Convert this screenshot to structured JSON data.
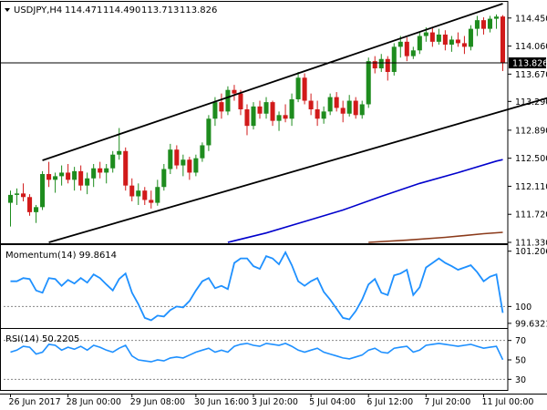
{
  "chart_data": [
    {
      "panel": "price",
      "type": "candlestick",
      "title": "USDJPY,H4",
      "ohlc_header": [
        "114.471",
        "114.490",
        "113.713",
        "113.826"
      ],
      "ylim": [
        111.33,
        114.65
      ],
      "y_ticks": [
        "114.450",
        "114.060",
        "113.670",
        "113.290",
        "112.890",
        "112.500",
        "112.110",
        "111.720",
        "111.330"
      ],
      "last_price_label": "113.826",
      "last_price": 113.826,
      "horizontal_line": 113.826,
      "channel_lines": [
        {
          "from": [
            5,
            112.47
          ],
          "to": [
            77,
            114.65
          ]
        },
        {
          "from": [
            6,
            111.33
          ],
          "to": [
            100,
            113.75
          ]
        }
      ],
      "candles": [
        {
          "i": 0,
          "o": 111.88,
          "h": 112.05,
          "l": 111.55,
          "c": 111.99
        },
        {
          "i": 1,
          "o": 111.99,
          "h": 112.08,
          "l": 111.85,
          "c": 112.01
        },
        {
          "i": 2,
          "o": 112.01,
          "h": 112.15,
          "l": 111.9,
          "c": 111.96
        },
        {
          "i": 3,
          "o": 111.96,
          "h": 112.0,
          "l": 111.7,
          "c": 111.75
        },
        {
          "i": 4,
          "o": 111.75,
          "h": 111.85,
          "l": 111.6,
          "c": 111.82
        },
        {
          "i": 5,
          "o": 111.82,
          "h": 112.32,
          "l": 111.78,
          "c": 112.28
        },
        {
          "i": 6,
          "o": 112.28,
          "h": 112.45,
          "l": 112.1,
          "c": 112.2
        },
        {
          "i": 7,
          "o": 112.2,
          "h": 112.3,
          "l": 112.02,
          "c": 112.25
        },
        {
          "i": 8,
          "o": 112.25,
          "h": 112.4,
          "l": 112.12,
          "c": 112.3
        },
        {
          "i": 9,
          "o": 112.3,
          "h": 112.42,
          "l": 112.15,
          "c": 112.2
        },
        {
          "i": 10,
          "o": 112.2,
          "h": 112.38,
          "l": 112.05,
          "c": 112.32
        },
        {
          "i": 11,
          "o": 112.32,
          "h": 112.4,
          "l": 112.05,
          "c": 112.12
        },
        {
          "i": 12,
          "o": 112.12,
          "h": 112.3,
          "l": 112.0,
          "c": 112.22
        },
        {
          "i": 13,
          "o": 112.22,
          "h": 112.42,
          "l": 112.1,
          "c": 112.36
        },
        {
          "i": 14,
          "o": 112.36,
          "h": 112.45,
          "l": 112.22,
          "c": 112.3
        },
        {
          "i": 15,
          "o": 112.3,
          "h": 112.42,
          "l": 112.15,
          "c": 112.36
        },
        {
          "i": 16,
          "o": 112.36,
          "h": 112.6,
          "l": 112.3,
          "c": 112.55
        },
        {
          "i": 17,
          "o": 112.55,
          "h": 112.92,
          "l": 112.48,
          "c": 112.6
        },
        {
          "i": 18,
          "o": 112.6,
          "h": 112.65,
          "l": 112.05,
          "c": 112.12
        },
        {
          "i": 19,
          "o": 112.12,
          "h": 112.22,
          "l": 111.9,
          "c": 111.97
        },
        {
          "i": 20,
          "o": 111.97,
          "h": 112.15,
          "l": 111.85,
          "c": 112.05
        },
        {
          "i": 21,
          "o": 112.05,
          "h": 112.1,
          "l": 111.85,
          "c": 111.92
        },
        {
          "i": 22,
          "o": 111.92,
          "h": 112.05,
          "l": 111.8,
          "c": 111.88
        },
        {
          "i": 23,
          "o": 111.88,
          "h": 112.2,
          "l": 111.84,
          "c": 112.1
        },
        {
          "i": 24,
          "o": 112.1,
          "h": 112.42,
          "l": 112.05,
          "c": 112.35
        },
        {
          "i": 25,
          "o": 112.35,
          "h": 112.7,
          "l": 112.28,
          "c": 112.62
        },
        {
          "i": 26,
          "o": 112.62,
          "h": 112.68,
          "l": 112.35,
          "c": 112.4
        },
        {
          "i": 27,
          "o": 112.4,
          "h": 112.55,
          "l": 112.25,
          "c": 112.48
        },
        {
          "i": 28,
          "o": 112.48,
          "h": 112.52,
          "l": 112.2,
          "c": 112.3
        },
        {
          "i": 29,
          "o": 112.3,
          "h": 112.55,
          "l": 112.25,
          "c": 112.5
        },
        {
          "i": 30,
          "o": 112.5,
          "h": 112.72,
          "l": 112.45,
          "c": 112.68
        },
        {
          "i": 31,
          "o": 112.68,
          "h": 113.1,
          "l": 112.6,
          "c": 113.05
        },
        {
          "i": 32,
          "o": 113.05,
          "h": 113.35,
          "l": 112.95,
          "c": 113.28
        },
        {
          "i": 33,
          "o": 113.28,
          "h": 113.4,
          "l": 113.05,
          "c": 113.15
        },
        {
          "i": 34,
          "o": 113.15,
          "h": 113.5,
          "l": 113.1,
          "c": 113.45
        },
        {
          "i": 35,
          "o": 113.45,
          "h": 113.52,
          "l": 113.3,
          "c": 113.4
        },
        {
          "i": 36,
          "o": 113.4,
          "h": 113.45,
          "l": 113.1,
          "c": 113.18
        },
        {
          "i": 37,
          "o": 113.18,
          "h": 113.25,
          "l": 112.82,
          "c": 112.95
        },
        {
          "i": 38,
          "o": 112.95,
          "h": 113.28,
          "l": 112.9,
          "c": 113.22
        },
        {
          "i": 39,
          "o": 113.22,
          "h": 113.3,
          "l": 113.05,
          "c": 113.12
        },
        {
          "i": 40,
          "o": 113.12,
          "h": 113.35,
          "l": 113.05,
          "c": 113.28
        },
        {
          "i": 41,
          "o": 113.28,
          "h": 113.3,
          "l": 112.95,
          "c": 113.02
        },
        {
          "i": 42,
          "o": 113.02,
          "h": 113.15,
          "l": 112.88,
          "c": 113.1
        },
        {
          "i": 43,
          "o": 113.1,
          "h": 113.25,
          "l": 113.0,
          "c": 113.05
        },
        {
          "i": 44,
          "o": 113.05,
          "h": 113.4,
          "l": 112.95,
          "c": 113.32
        },
        {
          "i": 45,
          "o": 113.32,
          "h": 113.7,
          "l": 113.28,
          "c": 113.62
        },
        {
          "i": 46,
          "o": 113.62,
          "h": 113.68,
          "l": 113.25,
          "c": 113.3
        },
        {
          "i": 47,
          "o": 113.3,
          "h": 113.4,
          "l": 113.1,
          "c": 113.18
        },
        {
          "i": 48,
          "o": 113.18,
          "h": 113.3,
          "l": 112.95,
          "c": 113.05
        },
        {
          "i": 49,
          "o": 113.05,
          "h": 113.22,
          "l": 112.98,
          "c": 113.15
        },
        {
          "i": 50,
          "o": 113.15,
          "h": 113.4,
          "l": 113.1,
          "c": 113.35
        },
        {
          "i": 51,
          "o": 113.35,
          "h": 113.42,
          "l": 113.15,
          "c": 113.2
        },
        {
          "i": 52,
          "o": 113.2,
          "h": 113.3,
          "l": 113.0,
          "c": 113.12
        },
        {
          "i": 53,
          "o": 113.12,
          "h": 113.38,
          "l": 113.08,
          "c": 113.3
        },
        {
          "i": 54,
          "o": 113.3,
          "h": 113.35,
          "l": 113.05,
          "c": 113.1
        },
        {
          "i": 55,
          "o": 113.1,
          "h": 113.3,
          "l": 113.05,
          "c": 113.25
        },
        {
          "i": 56,
          "o": 113.25,
          "h": 113.9,
          "l": 113.2,
          "c": 113.85
        },
        {
          "i": 57,
          "o": 113.85,
          "h": 113.92,
          "l": 113.68,
          "c": 113.75
        },
        {
          "i": 58,
          "o": 113.75,
          "h": 113.95,
          "l": 113.7,
          "c": 113.88
        },
        {
          "i": 59,
          "o": 113.88,
          "h": 113.92,
          "l": 113.58,
          "c": 113.7
        },
        {
          "i": 60,
          "o": 113.7,
          "h": 114.1,
          "l": 113.65,
          "c": 114.05
        },
        {
          "i": 61,
          "o": 114.05,
          "h": 114.2,
          "l": 113.9,
          "c": 114.12
        },
        {
          "i": 62,
          "o": 114.12,
          "h": 114.18,
          "l": 113.85,
          "c": 113.92
        },
        {
          "i": 63,
          "o": 113.92,
          "h": 114.05,
          "l": 113.88,
          "c": 114.0
        },
        {
          "i": 64,
          "o": 114.0,
          "h": 114.25,
          "l": 113.95,
          "c": 114.2
        },
        {
          "i": 65,
          "o": 114.2,
          "h": 114.32,
          "l": 114.12,
          "c": 114.25
        },
        {
          "i": 66,
          "o": 114.25,
          "h": 114.32,
          "l": 114.05,
          "c": 114.12
        },
        {
          "i": 67,
          "o": 114.12,
          "h": 114.3,
          "l": 114.08,
          "c": 114.22
        },
        {
          "i": 68,
          "o": 114.22,
          "h": 114.28,
          "l": 114.0,
          "c": 114.08
        },
        {
          "i": 69,
          "o": 114.08,
          "h": 114.2,
          "l": 113.98,
          "c": 114.15
        },
        {
          "i": 70,
          "o": 114.15,
          "h": 114.25,
          "l": 114.05,
          "c": 114.1
        },
        {
          "i": 71,
          "o": 114.1,
          "h": 114.2,
          "l": 113.95,
          "c": 114.05
        },
        {
          "i": 72,
          "o": 114.05,
          "h": 114.35,
          "l": 114.0,
          "c": 114.3
        },
        {
          "i": 73,
          "o": 114.3,
          "h": 114.48,
          "l": 114.2,
          "c": 114.42
        },
        {
          "i": 74,
          "o": 114.42,
          "h": 114.46,
          "l": 114.22,
          "c": 114.3
        },
        {
          "i": 75,
          "o": 114.3,
          "h": 114.48,
          "l": 114.25,
          "c": 114.44
        },
        {
          "i": 76,
          "o": 114.44,
          "h": 114.5,
          "l": 114.3,
          "c": 114.47
        },
        {
          "i": 77,
          "o": 114.471,
          "h": 114.49,
          "l": 113.713,
          "c": 113.826
        }
      ],
      "moving_averages": [
        {
          "color": "#0000cc",
          "points": [
            [
              34,
              111.33
            ],
            [
              40,
              111.46
            ],
            [
              46,
              111.62
            ],
            [
              52,
              111.78
            ],
            [
              58,
              111.97
            ],
            [
              64,
              112.15
            ],
            [
              70,
              112.3
            ],
            [
              76,
              112.46
            ],
            [
              77,
              112.48
            ]
          ]
        },
        {
          "color": "#8b3a1a",
          "points": [
            [
              56,
              111.33
            ],
            [
              62,
              111.36
            ],
            [
              68,
              111.4
            ],
            [
              74,
              111.45
            ],
            [
              77,
              111.47
            ]
          ]
        }
      ],
      "x_tick_labels": [
        {
          "i": 0,
          "label": "26 Jun 2017"
        },
        {
          "i": 9,
          "label": "28 Jun 00:00"
        },
        {
          "i": 19,
          "label": "29 Jun 08:00"
        },
        {
          "i": 29,
          "label": "30 Jun 16:00"
        },
        {
          "i": 38,
          "label": "3 Jul 20:00"
        },
        {
          "i": 47,
          "label": "5 Jul 04:00"
        },
        {
          "i": 56,
          "label": "6 Jul 12:00"
        },
        {
          "i": 65,
          "label": "7 Jul 20:00"
        },
        {
          "i": 74,
          "label": "11 Jul 00:00"
        }
      ],
      "up_color": "#1e8c1e",
      "down_color": "#d11a1a"
    },
    {
      "panel": "momentum",
      "type": "line",
      "label": "Momentum(14) 99.8614",
      "color": "#1e90ff",
      "ylim": [
        99.55,
        101.3
      ],
      "y_ticks": [
        "101.2068",
        "100",
        "99.6321"
      ],
      "level_line": 100,
      "values": [
        100.55,
        100.55,
        100.62,
        100.6,
        100.35,
        100.3,
        100.62,
        100.6,
        100.45,
        100.58,
        100.5,
        100.62,
        100.52,
        100.7,
        100.62,
        100.48,
        100.35,
        100.6,
        100.72,
        100.3,
        100.05,
        99.75,
        99.7,
        99.8,
        99.78,
        99.92,
        100.0,
        99.98,
        100.12,
        100.35,
        100.55,
        100.62,
        100.4,
        100.45,
        100.38,
        100.95,
        101.05,
        101.05,
        100.88,
        100.82,
        101.1,
        101.05,
        100.92,
        101.18,
        100.9,
        100.55,
        100.45,
        100.55,
        100.62,
        100.32,
        100.15,
        99.95,
        99.75,
        99.72,
        99.9,
        100.15,
        100.48,
        100.6,
        100.3,
        100.25,
        100.68,
        100.72,
        100.8,
        100.25,
        100.42,
        100.85,
        100.95,
        101.05,
        100.95,
        100.88,
        100.8,
        100.85,
        100.9,
        100.75,
        100.55,
        100.65,
        100.7,
        99.86
      ]
    },
    {
      "panel": "rsi",
      "type": "line",
      "label": "RSI(14) 50.2205",
      "color": "#1e90ff",
      "ylim": [
        20,
        80
      ],
      "y_ticks": [
        "70",
        "50",
        "30"
      ],
      "level_lines": [
        70,
        30
      ],
      "values": [
        58,
        60,
        64,
        63,
        56,
        58,
        66,
        65,
        60,
        63,
        61,
        64,
        60,
        65,
        63,
        60,
        58,
        62,
        65,
        54,
        50,
        49,
        48,
        50,
        49,
        52,
        53,
        52,
        55,
        58,
        60,
        62,
        58,
        60,
        58,
        64,
        66,
        67,
        65,
        64,
        67,
        66,
        65,
        67,
        64,
        60,
        58,
        60,
        62,
        58,
        56,
        54,
        52,
        51,
        53,
        55,
        60,
        62,
        58,
        57,
        62,
        63,
        64,
        58,
        60,
        65,
        66,
        67,
        66,
        65,
        64,
        65,
        66,
        64,
        62,
        63,
        64,
        50.22
      ]
    }
  ],
  "price_label_box_text_color": "#ffffff"
}
